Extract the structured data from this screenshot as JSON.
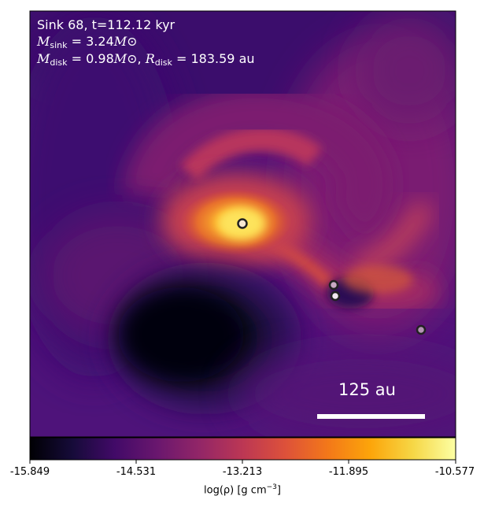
{
  "annotation": {
    "line1": "Sink 68, t=112.12 kyr",
    "m_sink_symbol": "M",
    "m_sink_sub": "sink",
    "m_sink_value": "= 3.24",
    "m_disk_symbol": "M",
    "m_disk_sub": "disk",
    "m_disk_value": "= 0.98",
    "r_disk_symbol": "R",
    "r_disk_sub": "disk",
    "r_disk_value": "= 183.59 au",
    "solar_unit": "M⊙"
  },
  "scale_bar": {
    "label": "125 au"
  },
  "sinks": [
    {
      "role": "primary",
      "fill": "#f6e7d2"
    },
    {
      "role": "companion",
      "fill": "#c9a9c4"
    },
    {
      "role": "companion",
      "fill": "#f2e8f0"
    },
    {
      "role": "companion",
      "fill": "#b593b5"
    }
  ],
  "colorbar": {
    "colormap": "inferno",
    "vmin": -15.849,
    "vmax": -10.577,
    "ticks": [
      "-15.849",
      "-14.531",
      "-13.213",
      "-11.895",
      "-10.577"
    ],
    "label_text": "log(ρ) [g cm",
    "label_exp": "−3",
    "label_close": "]"
  }
}
